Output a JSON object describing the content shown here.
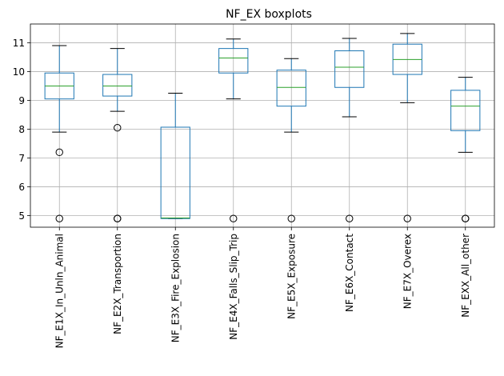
{
  "chart_data": {
    "type": "boxplot",
    "title": "NF_EX boxplots",
    "xlabel": "",
    "ylabel": "",
    "ylim": [
      4.6,
      11.65
    ],
    "yticks": [
      5,
      6,
      7,
      8,
      9,
      10,
      11
    ],
    "grid": true,
    "colors": {
      "box": "#1f77b4",
      "median": "#2ca02c",
      "whisker": "#000000",
      "grid": "#b0b0b0",
      "flier": "#000000"
    },
    "categories": [
      "NF_E1X_In_Unln_Animal",
      "NF_E2X_Transportion",
      "NF_E3X_Fire_Explosion",
      "NF_E4X_Falls_Slip_Trip",
      "NF_E5X_Exposure",
      "NF_E6X_Contact",
      "NF_E7X_Overex",
      "NF_EXX_All_other"
    ],
    "boxes": [
      {
        "whislo": 7.9,
        "q1": 9.05,
        "med": 9.5,
        "q3": 9.95,
        "whishi": 10.9,
        "fliers": [
          7.2,
          4.9
        ]
      },
      {
        "whislo": 8.62,
        "q1": 9.15,
        "med": 9.5,
        "q3": 9.9,
        "whishi": 10.8,
        "fliers": [
          8.05,
          4.9,
          4.9
        ]
      },
      {
        "whislo": 4.9,
        "q1": 4.9,
        "med": 4.92,
        "q3": 8.07,
        "whishi": 9.25,
        "fliers": []
      },
      {
        "whislo": 9.05,
        "q1": 9.95,
        "med": 10.47,
        "q3": 10.8,
        "whishi": 11.13,
        "fliers": [
          4.9
        ]
      },
      {
        "whislo": 7.9,
        "q1": 8.8,
        "med": 9.45,
        "q3": 10.05,
        "whishi": 10.45,
        "fliers": [
          4.9
        ]
      },
      {
        "whislo": 8.43,
        "q1": 9.45,
        "med": 10.15,
        "q3": 10.72,
        "whishi": 11.15,
        "fliers": [
          4.9
        ]
      },
      {
        "whislo": 8.92,
        "q1": 9.9,
        "med": 10.42,
        "q3": 10.95,
        "whishi": 11.32,
        "fliers": [
          4.9
        ]
      },
      {
        "whislo": 7.2,
        "q1": 7.95,
        "med": 8.8,
        "q3": 9.35,
        "whishi": 9.8,
        "fliers": [
          4.9,
          4.9
        ]
      }
    ]
  }
}
